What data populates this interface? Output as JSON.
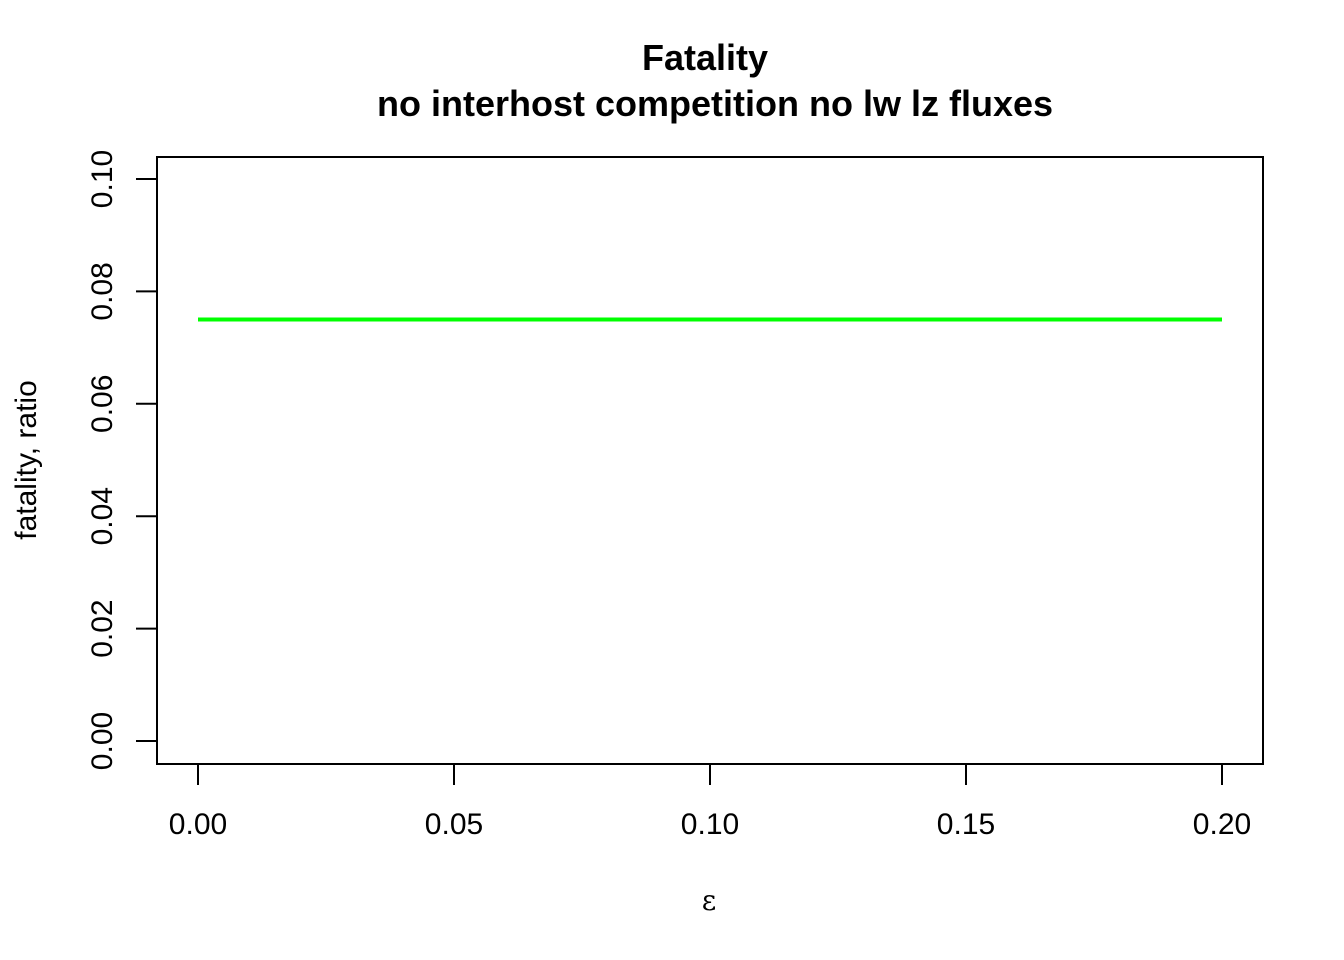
{
  "chart_data": {
    "type": "line",
    "title": "Fatality",
    "subtitle": "no interhost competition no lw lz fluxes",
    "xlabel": "ε",
    "ylabel": "fatality, ratio",
    "xlim": [
      0.0,
      0.2
    ],
    "ylim": [
      0.0,
      0.1
    ],
    "x_ticks": [
      "0.00",
      "0.05",
      "0.10",
      "0.15",
      "0.20"
    ],
    "y_ticks": [
      "0.00",
      "0.02",
      "0.04",
      "0.06",
      "0.08",
      "0.10"
    ],
    "grid": false,
    "series": [
      {
        "color": "#00ff00",
        "x": [
          0.0,
          0.2
        ],
        "values": [
          0.075,
          0.075
        ]
      }
    ]
  }
}
